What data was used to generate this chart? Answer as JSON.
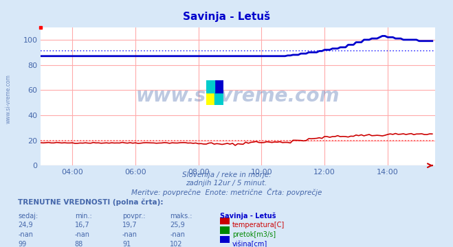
{
  "title": "Savinja - Letuš",
  "title_color": "#0000cc",
  "background_color": "#d8e8f8",
  "plot_bg_color": "#ffffff",
  "grid_color": "#ffaaaa",
  "xlim_hours": [
    3.0,
    15.5
  ],
  "ylim": [
    0,
    110
  ],
  "yticks": [
    0,
    20,
    40,
    60,
    80,
    100
  ],
  "xticks_hours": [
    4,
    6,
    8,
    10,
    12,
    14
  ],
  "xtick_labels": [
    "04:00",
    "06:00",
    "08:00",
    "10:00",
    "12:00",
    "14:00"
  ],
  "temp_color": "#cc0000",
  "temp_dotted_color": "#ff4444",
  "flow_color": "#008800",
  "height_color": "#0000cc",
  "height_dotted_color": "#4444ff",
  "temp_avg": 19.7,
  "height_avg": 91,
  "subtitle1": "Slovenija / reke in morje.",
  "subtitle2": "zadnjih 12ur / 5 minut.",
  "subtitle3": "Meritve: povprečne  Enote: metrične  Črta: povprečje",
  "subtitle_color": "#4466aa",
  "watermark": "www.si-vreme.com",
  "watermark_color": "#4466aa",
  "legend_title": "Savinja - Letuš",
  "legend_title_color": "#0000cc",
  "table_header": "TRENUTNE VREDNOSTI (polna črta):",
  "col_headers": [
    "sedaj:",
    "min.:",
    "povpr.:",
    "maks.:",
    "Savinja - Letuš"
  ],
  "row_temp": [
    "24,9",
    "16,7",
    "19,7",
    "25,9",
    "temperatura[C]"
  ],
  "row_flow": [
    "-nan",
    "-nan",
    "-nan",
    "-nan",
    "pretok[m3/s]"
  ],
  "row_height": [
    "99",
    "88",
    "91",
    "102",
    "višina[cm]"
  ],
  "ylabel_color": "#4466aa"
}
